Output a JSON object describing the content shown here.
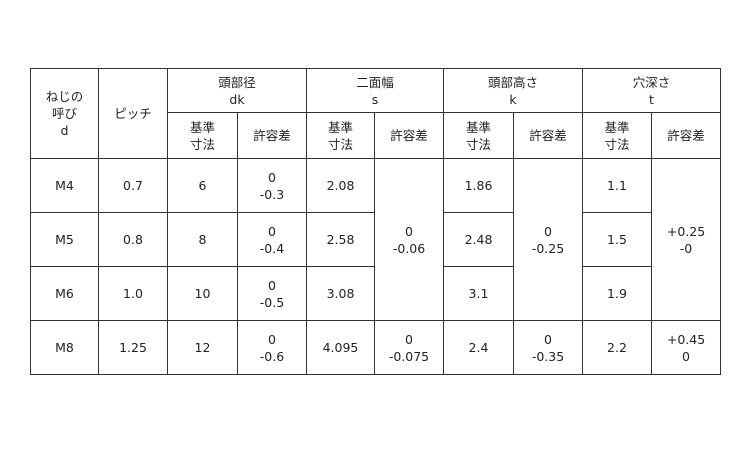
{
  "headers": {
    "nominal": "ねじの\n呼び\nd",
    "pitch": "ピッチ",
    "groups": [
      {
        "name": "頭部径",
        "symbol": "dk"
      },
      {
        "name": "二面幅",
        "symbol": "s"
      },
      {
        "name": "頭部高さ",
        "symbol": "k"
      },
      {
        "name": "穴深さ",
        "symbol": "t"
      }
    ],
    "basic": "基準\n寸法",
    "tolerance": "許容差"
  },
  "rows": [
    {
      "d": "M4",
      "pitch": "0.7",
      "dk": "6",
      "dk_tol": "0\n-0.3",
      "s": "2.08",
      "k": "1.86",
      "t": "1.1"
    },
    {
      "d": "M5",
      "pitch": "0.8",
      "dk": "8",
      "dk_tol": "0\n-0.4",
      "s": "2.58",
      "k": "2.48",
      "t": "1.5"
    },
    {
      "d": "M6",
      "pitch": "1.0",
      "dk": "10",
      "dk_tol": "0\n-0.5",
      "s": "3.08",
      "k": "3.1",
      "t": "1.9"
    },
    {
      "d": "M8",
      "pitch": "1.25",
      "dk": "12",
      "dk_tol": "0\n-0.6",
      "s": "4.095",
      "s_tol": "0\n-0.075",
      "k": "2.4",
      "k_tol": "0\n-0.35",
      "t": "2.2",
      "t_tol": "+0.45\n0"
    }
  ],
  "merged": {
    "s_tol_m4_m6": "0\n-0.06",
    "k_tol_m4_m6": "0\n-0.25",
    "t_tol_m4_m6": "+0.25\n-0"
  }
}
